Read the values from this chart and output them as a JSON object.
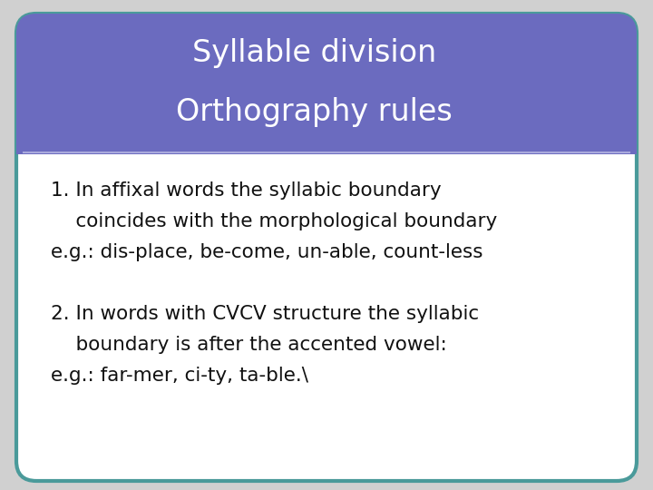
{
  "title_line1": "Syllable division",
  "title_line2": "Orthography rules",
  "title_bg_color": "#6B6BBF",
  "title_text_color": "#ffffff",
  "body_bg_color": "#ffffff",
  "border_color": "#4A9A9A",
  "separator_color": "#aaaadd",
  "body_text_color": "#111111",
  "fig_bg_color": "#d0d0d0",
  "slide_bg_color": "#ffffff",
  "title_fontsize": 24,
  "body_fontsize": 15.5,
  "lines": [
    "1. In affixal words the syllabic boundary",
    "    coincides with the morphological boundary",
    "e.g.: dis-place, be-come, un-able, count-less",
    "",
    "2. In words with CVCV structure the syllabic",
    "    boundary is after the accented vowel:",
    "e.g.: far-mer, ci-ty, ta-ble.\\"
  ]
}
